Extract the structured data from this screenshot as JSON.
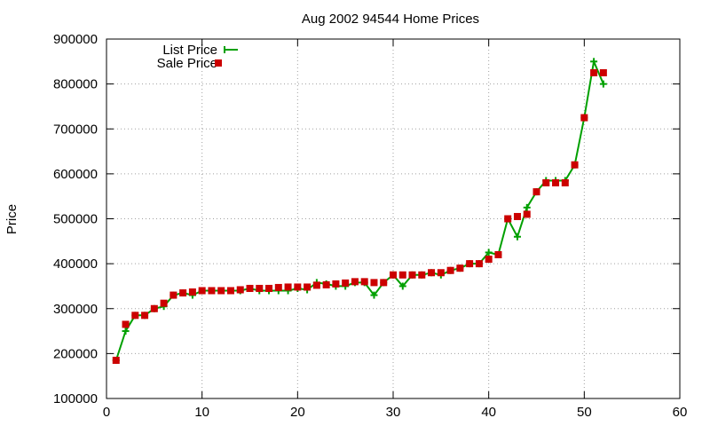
{
  "chart_data": {
    "type": "line",
    "title": "Aug 2002 94544 Home Prices",
    "xlabel": "",
    "ylabel": "Price",
    "xlim": [
      0,
      60
    ],
    "ylim": [
      100000,
      900000
    ],
    "xticks": [
      "0",
      "10",
      "20",
      "30",
      "40",
      "50",
      "60"
    ],
    "yticks": [
      "100000",
      "200000",
      "300000",
      "400000",
      "500000",
      "600000",
      "700000",
      "800000",
      "900000"
    ],
    "grid": true,
    "legend_position": "top-left",
    "series": [
      {
        "name": "List Price",
        "style": "line-with-plus-markers",
        "color": "#00a000",
        "x": [
          1,
          2,
          3,
          4,
          5,
          6,
          7,
          8,
          9,
          10,
          11,
          12,
          13,
          14,
          15,
          16,
          17,
          18,
          19,
          20,
          21,
          22,
          23,
          24,
          25,
          26,
          27,
          28,
          29,
          30,
          31,
          32,
          33,
          34,
          35,
          36,
          37,
          38,
          39,
          40,
          41,
          42,
          43,
          44,
          45,
          46,
          47,
          48,
          49,
          50,
          51,
          52
        ],
        "y": [
          185000,
          250000,
          285000,
          285000,
          300000,
          305000,
          330000,
          335000,
          330000,
          340000,
          340000,
          340000,
          340000,
          340000,
          345000,
          340000,
          340000,
          340000,
          340000,
          345000,
          342000,
          358000,
          355000,
          350000,
          350000,
          358000,
          358000,
          330000,
          358000,
          375000,
          350000,
          375000,
          375000,
          380000,
          375000,
          385000,
          390000,
          400000,
          400000,
          425000,
          420000,
          500000,
          460000,
          525000,
          560000,
          585000,
          585000,
          585000,
          620000,
          725000,
          850000,
          800000
        ]
      },
      {
        "name": "Sale Price",
        "style": "square-markers",
        "color": "#cc0000",
        "x": [
          1,
          2,
          3,
          4,
          5,
          6,
          7,
          8,
          9,
          10,
          11,
          12,
          13,
          14,
          15,
          16,
          17,
          18,
          19,
          20,
          21,
          22,
          23,
          24,
          25,
          26,
          27,
          28,
          29,
          30,
          31,
          32,
          33,
          34,
          35,
          36,
          37,
          38,
          39,
          40,
          41,
          42,
          43,
          44,
          45,
          46,
          47,
          48,
          49,
          50,
          51,
          52
        ],
        "y": [
          185000,
          265000,
          285000,
          285000,
          300000,
          312000,
          330000,
          335000,
          337000,
          340000,
          340000,
          340000,
          340000,
          342000,
          345000,
          345000,
          345000,
          347000,
          348000,
          348000,
          348000,
          352000,
          353000,
          355000,
          357000,
          360000,
          360000,
          358000,
          358000,
          375000,
          375000,
          375000,
          375000,
          380000,
          380000,
          385000,
          390000,
          400000,
          400000,
          410000,
          420000,
          500000,
          505000,
          510000,
          560000,
          580000,
          580000,
          580000,
          620000,
          725000,
          825000,
          825000
        ]
      }
    ]
  }
}
